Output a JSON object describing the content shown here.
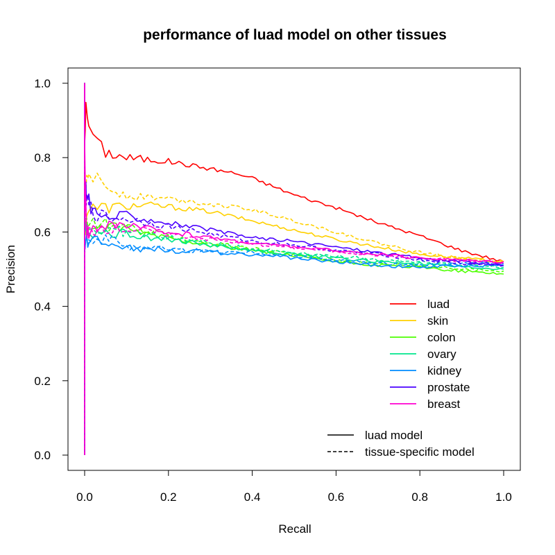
{
  "chart_data": {
    "type": "line",
    "title": "performance of luad model on other tissues",
    "xlabel": "Recall",
    "ylabel": "Precision",
    "xlim": [
      0.0,
      1.0
    ],
    "ylim": [
      0.0,
      1.0
    ],
    "x_ticks": [
      "0.0",
      "0.2",
      "0.4",
      "0.6",
      "0.8",
      "1.0"
    ],
    "y_ticks": [
      "0.0",
      "0.2",
      "0.4",
      "0.6",
      "0.8",
      "1.0"
    ],
    "grid": false,
    "legend_position": "bottom-right",
    "legend": [
      {
        "name": "luad",
        "color": "#ff0000"
      },
      {
        "name": "skin",
        "color": "#ffd000"
      },
      {
        "name": "colon",
        "color": "#4dff00"
      },
      {
        "name": "ovary",
        "color": "#00e68c"
      },
      {
        "name": "kidney",
        "color": "#008cff"
      },
      {
        "name": "prostate",
        "color": "#4a00ff"
      },
      {
        "name": "breast",
        "color": "#ff00d0"
      }
    ],
    "linetype_legend": [
      {
        "name": "luad model",
        "style": "solid"
      },
      {
        "name": "tissue-specific model",
        "style": "dashed"
      }
    ],
    "series": [
      {
        "name": "luad",
        "model": "luad model",
        "color": "#ff0000",
        "style": "solid",
        "x": [
          0,
          0.003,
          0.01,
          0.03,
          0.05,
          0.1,
          0.15,
          0.2,
          0.3,
          0.35,
          0.4,
          0.5,
          0.6,
          0.7,
          0.8,
          0.9,
          1.0
        ],
        "y": [
          0.85,
          0.93,
          0.89,
          0.84,
          0.815,
          0.8,
          0.795,
          0.79,
          0.77,
          0.76,
          0.745,
          0.7,
          0.665,
          0.625,
          0.59,
          0.55,
          0.52
        ]
      },
      {
        "name": "skin",
        "model": "luad model",
        "color": "#ffd000",
        "style": "solid",
        "x": [
          0,
          0.005,
          0.01,
          0.03,
          0.05,
          0.1,
          0.15,
          0.2,
          0.3,
          0.4,
          0.5,
          0.6,
          0.7,
          0.8,
          0.9,
          1.0
        ],
        "y": [
          0.58,
          0.65,
          0.66,
          0.665,
          0.665,
          0.67,
          0.672,
          0.668,
          0.655,
          0.63,
          0.605,
          0.58,
          0.56,
          0.54,
          0.53,
          0.52
        ]
      },
      {
        "name": "skin",
        "model": "tissue-specific model",
        "color": "#ffd000",
        "style": "dashed",
        "x": [
          0,
          0.005,
          0.01,
          0.03,
          0.05,
          0.1,
          0.15,
          0.2,
          0.3,
          0.4,
          0.5,
          0.6,
          0.7,
          0.8,
          0.9,
          1.0
        ],
        "y": [
          0.62,
          0.74,
          0.76,
          0.74,
          0.72,
          0.7,
          0.695,
          0.69,
          0.675,
          0.66,
          0.63,
          0.6,
          0.57,
          0.545,
          0.53,
          0.52
        ]
      },
      {
        "name": "colon",
        "model": "luad model",
        "color": "#4dff00",
        "style": "solid",
        "x": [
          0,
          0.005,
          0.01,
          0.03,
          0.05,
          0.1,
          0.2,
          0.3,
          0.4,
          0.5,
          0.6,
          0.7,
          0.8,
          0.9,
          1.0
        ],
        "y": [
          0.6,
          0.62,
          0.61,
          0.61,
          0.615,
          0.605,
          0.585,
          0.565,
          0.55,
          0.535,
          0.52,
          0.51,
          0.505,
          0.495,
          0.487
        ]
      },
      {
        "name": "colon",
        "model": "tissue-specific model",
        "color": "#4dff00",
        "style": "dashed",
        "x": [
          0,
          0.005,
          0.01,
          0.03,
          0.05,
          0.1,
          0.2,
          0.3,
          0.4,
          0.5,
          0.6,
          0.7,
          0.8,
          0.9,
          1.0
        ],
        "y": [
          0.61,
          0.63,
          0.62,
          0.625,
          0.62,
          0.61,
          0.59,
          0.57,
          0.555,
          0.54,
          0.525,
          0.515,
          0.51,
          0.5,
          0.495
        ]
      },
      {
        "name": "ovary",
        "model": "luad model",
        "color": "#00e68c",
        "style": "solid",
        "x": [
          0,
          0.005,
          0.01,
          0.03,
          0.05,
          0.1,
          0.2,
          0.3,
          0.4,
          0.5,
          0.6,
          0.7,
          0.8,
          0.9,
          1.0
        ],
        "y": [
          0.6,
          0.61,
          0.6,
          0.595,
          0.6,
          0.595,
          0.58,
          0.565,
          0.55,
          0.54,
          0.53,
          0.52,
          0.515,
          0.505,
          0.5
        ]
      },
      {
        "name": "ovary",
        "model": "tissue-specific model",
        "color": "#00e68c",
        "style": "dashed",
        "x": [
          0,
          0.005,
          0.01,
          0.03,
          0.05,
          0.1,
          0.2,
          0.3,
          0.4,
          0.5,
          0.6,
          0.7,
          0.8,
          0.9,
          1.0
        ],
        "y": [
          0.61,
          0.62,
          0.61,
          0.605,
          0.605,
          0.6,
          0.585,
          0.57,
          0.555,
          0.545,
          0.535,
          0.525,
          0.52,
          0.51,
          0.505
        ]
      },
      {
        "name": "kidney",
        "model": "luad model",
        "color": "#008cff",
        "style": "solid",
        "x": [
          0,
          0.005,
          0.01,
          0.03,
          0.05,
          0.08,
          0.1,
          0.15,
          0.2,
          0.25,
          0.3,
          0.4,
          0.5,
          0.6,
          0.7,
          0.8,
          0.9,
          1.0
        ],
        "y": [
          0.55,
          0.58,
          0.57,
          0.575,
          0.58,
          0.57,
          0.56,
          0.555,
          0.55,
          0.55,
          0.545,
          0.54,
          0.53,
          0.52,
          0.51,
          0.505,
          0.51,
          0.51
        ]
      },
      {
        "name": "kidney",
        "model": "tissue-specific model",
        "color": "#008cff",
        "style": "dashed",
        "x": [
          0,
          0.005,
          0.01,
          0.03,
          0.05,
          0.08,
          0.1,
          0.15,
          0.2,
          0.25,
          0.3,
          0.4,
          0.5,
          0.6,
          0.7,
          0.8,
          0.9,
          1.0
        ],
        "y": [
          0.56,
          0.59,
          0.58,
          0.585,
          0.58,
          0.575,
          0.565,
          0.56,
          0.555,
          0.55,
          0.548,
          0.545,
          0.535,
          0.525,
          0.515,
          0.51,
          0.515,
          0.515
        ]
      },
      {
        "name": "prostate",
        "model": "luad model",
        "color": "#4a00ff",
        "style": "solid",
        "x": [
          0,
          0.003,
          0.005,
          0.01,
          0.02,
          0.03,
          0.05,
          0.1,
          0.15,
          0.2,
          0.3,
          0.4,
          0.5,
          0.6,
          0.7,
          0.8,
          0.9,
          1.0
        ],
        "y": [
          0.65,
          0.72,
          0.7,
          0.68,
          0.66,
          0.65,
          0.64,
          0.645,
          0.635,
          0.625,
          0.605,
          0.585,
          0.575,
          0.56,
          0.545,
          0.53,
          0.52,
          0.51
        ]
      },
      {
        "name": "prostate",
        "model": "tissue-specific model",
        "color": "#4a00ff",
        "style": "dashed",
        "x": [
          0,
          0.003,
          0.005,
          0.01,
          0.02,
          0.03,
          0.05,
          0.1,
          0.15,
          0.2,
          0.3,
          0.4,
          0.5,
          0.6,
          0.7,
          0.8,
          0.9,
          1.0
        ],
        "y": [
          0.64,
          0.7,
          0.69,
          0.67,
          0.655,
          0.645,
          0.64,
          0.635,
          0.625,
          0.615,
          0.595,
          0.575,
          0.565,
          0.55,
          0.54,
          0.525,
          0.515,
          0.51
        ]
      },
      {
        "name": "breast",
        "model": "luad model",
        "color": "#ff00d0",
        "style": "solid",
        "x": [
          0,
          0.002,
          0.004,
          0.006,
          0.01,
          0.02,
          0.03,
          0.05,
          0.1,
          0.2,
          0.3,
          0.4,
          0.5,
          0.6,
          0.7,
          0.8,
          0.9,
          1.0
        ],
        "y": [
          0.85,
          0.7,
          0.62,
          0.6,
          0.605,
          0.61,
          0.615,
          0.62,
          0.615,
          0.6,
          0.585,
          0.57,
          0.56,
          0.55,
          0.54,
          0.53,
          0.525,
          0.52
        ]
      },
      {
        "name": "breast",
        "model": "tissue-specific model",
        "color": "#ff00d0",
        "style": "dashed",
        "x": [
          0,
          0.002,
          0.004,
          0.006,
          0.01,
          0.02,
          0.03,
          0.05,
          0.1,
          0.2,
          0.3,
          0.4,
          0.5,
          0.6,
          0.7,
          0.8,
          0.9,
          1.0
        ],
        "y": [
          0.8,
          0.68,
          0.61,
          0.6,
          0.6,
          0.605,
          0.61,
          0.612,
          0.608,
          0.595,
          0.58,
          0.568,
          0.558,
          0.548,
          0.538,
          0.53,
          0.522,
          0.518
        ]
      }
    ]
  }
}
